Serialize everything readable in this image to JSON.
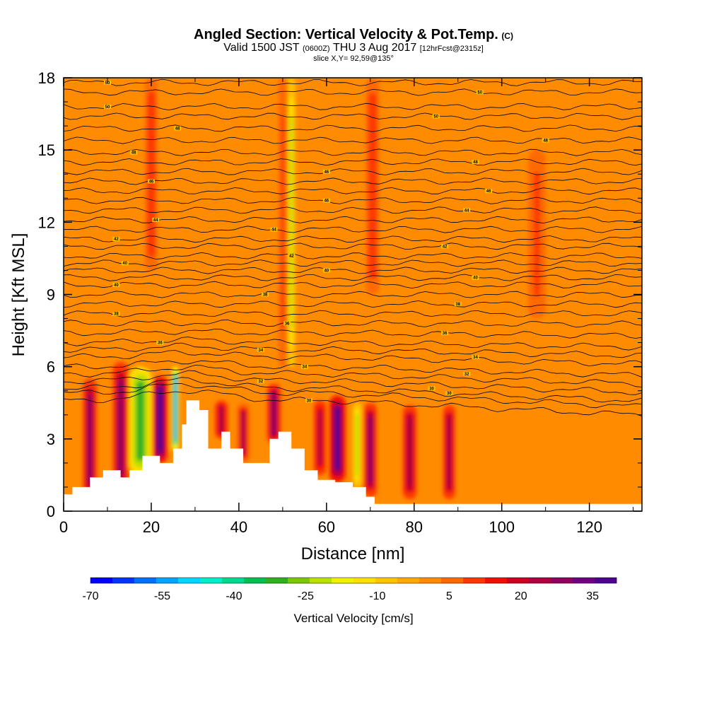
{
  "header": {
    "title": "Angled Section: Vertical Velocity & Pot.Temp.",
    "title_mark": "(C)",
    "valid_prefix": "Valid 1500 JST",
    "valid_utc": "(0600Z)",
    "valid_date": "THU 3 Aug 2017",
    "forecast": "[12hrFcst@2315z]",
    "slice": "slice X,Y= 92,59@135°"
  },
  "chart_data": {
    "type": "heatmap",
    "xlabel": "Distance [nm]",
    "ylabel": "Height [Kft MSL]",
    "xlim": [
      0,
      132
    ],
    "ylim": [
      0,
      18
    ],
    "x_ticks": [
      "0",
      "20",
      "40",
      "60",
      "80",
      "100",
      "120"
    ],
    "y_ticks": [
      "0",
      "3",
      "6",
      "9",
      "12",
      "15",
      "18"
    ],
    "colorbar": {
      "label": "Vertical Velocity [cm/s]",
      "tick_labels": [
        "-70",
        "-55",
        "-40",
        "-25",
        "-10",
        "5",
        "20",
        "35"
      ],
      "tick_values": [
        -70,
        -55,
        -40,
        -25,
        -10,
        5,
        20,
        35
      ],
      "min": -70,
      "max": 40,
      "colors": [
        "#0000ff",
        "#0035ff",
        "#0070ff",
        "#00a5ff",
        "#00d6ff",
        "#00eec8",
        "#00d890",
        "#00c050",
        "#30b020",
        "#7cc800",
        "#b8e000",
        "#f0f000",
        "#ffde00",
        "#ffc400",
        "#ffa800",
        "#ff8c00",
        "#ff6a00",
        "#ff3800",
        "#f01000",
        "#d00020",
        "#b00040",
        "#900060",
        "#700080",
        "#500090"
      ]
    },
    "terrain": [
      {
        "x": 0,
        "y": 0.7
      },
      {
        "x": 2,
        "y": 1.0
      },
      {
        "x": 6,
        "y": 1.4
      },
      {
        "x": 9,
        "y": 1.7
      },
      {
        "x": 13,
        "y": 1.4
      },
      {
        "x": 15,
        "y": 1.7
      },
      {
        "x": 18,
        "y": 2.3
      },
      {
        "x": 22,
        "y": 2.0
      },
      {
        "x": 25,
        "y": 2.6
      },
      {
        "x": 27,
        "y": 3.6
      },
      {
        "x": 28,
        "y": 4.6
      },
      {
        "x": 31,
        "y": 4.2
      },
      {
        "x": 33,
        "y": 2.6
      },
      {
        "x": 36,
        "y": 3.3
      },
      {
        "x": 38,
        "y": 2.6
      },
      {
        "x": 41,
        "y": 2.0
      },
      {
        "x": 44,
        "y": 2.0
      },
      {
        "x": 47,
        "y": 3.0
      },
      {
        "x": 49,
        "y": 3.3
      },
      {
        "x": 52,
        "y": 2.6
      },
      {
        "x": 55,
        "y": 1.7
      },
      {
        "x": 58,
        "y": 1.3
      },
      {
        "x": 62,
        "y": 1.2
      },
      {
        "x": 66,
        "y": 1.0
      },
      {
        "x": 69,
        "y": 0.6
      },
      {
        "x": 71,
        "y": 0.3
      },
      {
        "x": 132,
        "y": 0.3
      }
    ],
    "theta_contours": [
      {
        "label": "50",
        "y": 17.8,
        "label_x": 10
      },
      {
        "label": "50",
        "y": 17.4,
        "label_x": 95
      },
      {
        "label": "50",
        "y": 16.8,
        "label_x": 10
      },
      {
        "label": "50",
        "y": 16.4,
        "label_x": 85
      },
      {
        "label": "48",
        "y": 15.9,
        "label_x": 26
      },
      {
        "label": "48",
        "y": 15.4,
        "label_x": 110
      },
      {
        "label": "48",
        "y": 14.9,
        "label_x": 16
      },
      {
        "label": "48",
        "y": 14.5,
        "label_x": 94
      },
      {
        "label": "46",
        "y": 14.1,
        "label_x": 60
      },
      {
        "label": "46",
        "y": 13.7,
        "label_x": 20
      },
      {
        "label": "46",
        "y": 13.3,
        "label_x": 97
      },
      {
        "label": "46",
        "y": 12.9,
        "label_x": 60
      },
      {
        "label": "44",
        "y": 12.5,
        "label_x": 92
      },
      {
        "label": "44",
        "y": 12.1,
        "label_x": 21
      },
      {
        "label": "44",
        "y": 11.7,
        "label_x": 48
      },
      {
        "label": "42",
        "y": 11.3,
        "label_x": 12
      },
      {
        "label": "42",
        "y": 11.0,
        "label_x": 87
      },
      {
        "label": "42",
        "y": 10.6,
        "label_x": 52
      },
      {
        "label": "40",
        "y": 10.3,
        "label_x": 14
      },
      {
        "label": "40",
        "y": 10.0,
        "label_x": 60
      },
      {
        "label": "40",
        "y": 9.7,
        "label_x": 94
      },
      {
        "label": "40",
        "y": 9.4,
        "label_x": 12
      },
      {
        "label": "38",
        "y": 9.0,
        "label_x": 46
      },
      {
        "label": "38",
        "y": 8.6,
        "label_x": 90
      },
      {
        "label": "38",
        "y": 8.2,
        "label_x": 12
      },
      {
        "label": "36",
        "y": 7.8,
        "label_x": 51
      },
      {
        "label": "36",
        "y": 7.4,
        "label_x": 87
      },
      {
        "label": "36",
        "y": 7.0,
        "label_x": 22
      },
      {
        "label": "34",
        "y": 6.7,
        "label_x": 45
      },
      {
        "label": "34",
        "y": 6.4,
        "label_x": 94
      },
      {
        "label": "34",
        "y": 6.0,
        "label_x": 55
      },
      {
        "label": "32",
        "y": 5.7,
        "label_x": 92
      },
      {
        "label": "32",
        "y": 5.4,
        "label_x": 45
      },
      {
        "label": "30",
        "y": 5.1,
        "label_x": 84
      },
      {
        "label": "30",
        "y": 4.9,
        "label_x": 88
      },
      {
        "label": "30",
        "y": 4.6,
        "label_x": 56
      }
    ],
    "vv_field": {
      "background": 2,
      "columns": [
        {
          "x": 6,
          "w": 1.6,
          "z0": 0.5,
          "z1": 5.5,
          "v": 28
        },
        {
          "x": 13,
          "w": 1.8,
          "z0": 0.8,
          "z1": 6.2,
          "v": 30
        },
        {
          "x": 17.5,
          "w": 2.6,
          "z0": 1.5,
          "z1": 6.0,
          "v": -32
        },
        {
          "x": 22,
          "w": 1.6,
          "z0": 2.0,
          "z1": 5.6,
          "v": 38
        },
        {
          "x": 25.5,
          "w": 0.8,
          "z0": 2.5,
          "z1": 6.0,
          "v": -55
        },
        {
          "x": 36,
          "w": 1.5,
          "z0": 3.0,
          "z1": 4.6,
          "v": 24
        },
        {
          "x": 41,
          "w": 1.5,
          "z0": 2.0,
          "z1": 4.5,
          "v": 22
        },
        {
          "x": 48,
          "w": 1.6,
          "z0": 2.8,
          "z1": 5.3,
          "v": 30
        },
        {
          "x": 52,
          "w": 0.8,
          "z0": 6.0,
          "z1": 18.0,
          "v": -20
        },
        {
          "x": 58.5,
          "w": 1.4,
          "z0": 1.5,
          "z1": 4.6,
          "v": 24
        },
        {
          "x": 62.5,
          "w": 1.8,
          "z0": 1.2,
          "z1": 4.8,
          "v": 36
        },
        {
          "x": 67,
          "w": 1.0,
          "z0": 1.0,
          "z1": 4.5,
          "v": -20
        },
        {
          "x": 70,
          "w": 1.5,
          "z0": 0.6,
          "z1": 4.5,
          "v": 30
        },
        {
          "x": 79,
          "w": 1.6,
          "z0": 0.5,
          "z1": 4.4,
          "v": 26
        },
        {
          "x": 88,
          "w": 1.4,
          "z0": 0.5,
          "z1": 4.4,
          "v": 26
        },
        {
          "x": 20,
          "w": 1.4,
          "z0": 10.0,
          "z1": 18.0,
          "v": 12
        },
        {
          "x": 70.5,
          "w": 1.5,
          "z0": 9.0,
          "z1": 18.0,
          "v": 12
        },
        {
          "x": 50,
          "w": 1.0,
          "z0": 6.0,
          "z1": 18.0,
          "v": 10
        },
        {
          "x": 108,
          "w": 2.0,
          "z0": 8.0,
          "z1": 15.0,
          "v": 10
        }
      ]
    }
  }
}
